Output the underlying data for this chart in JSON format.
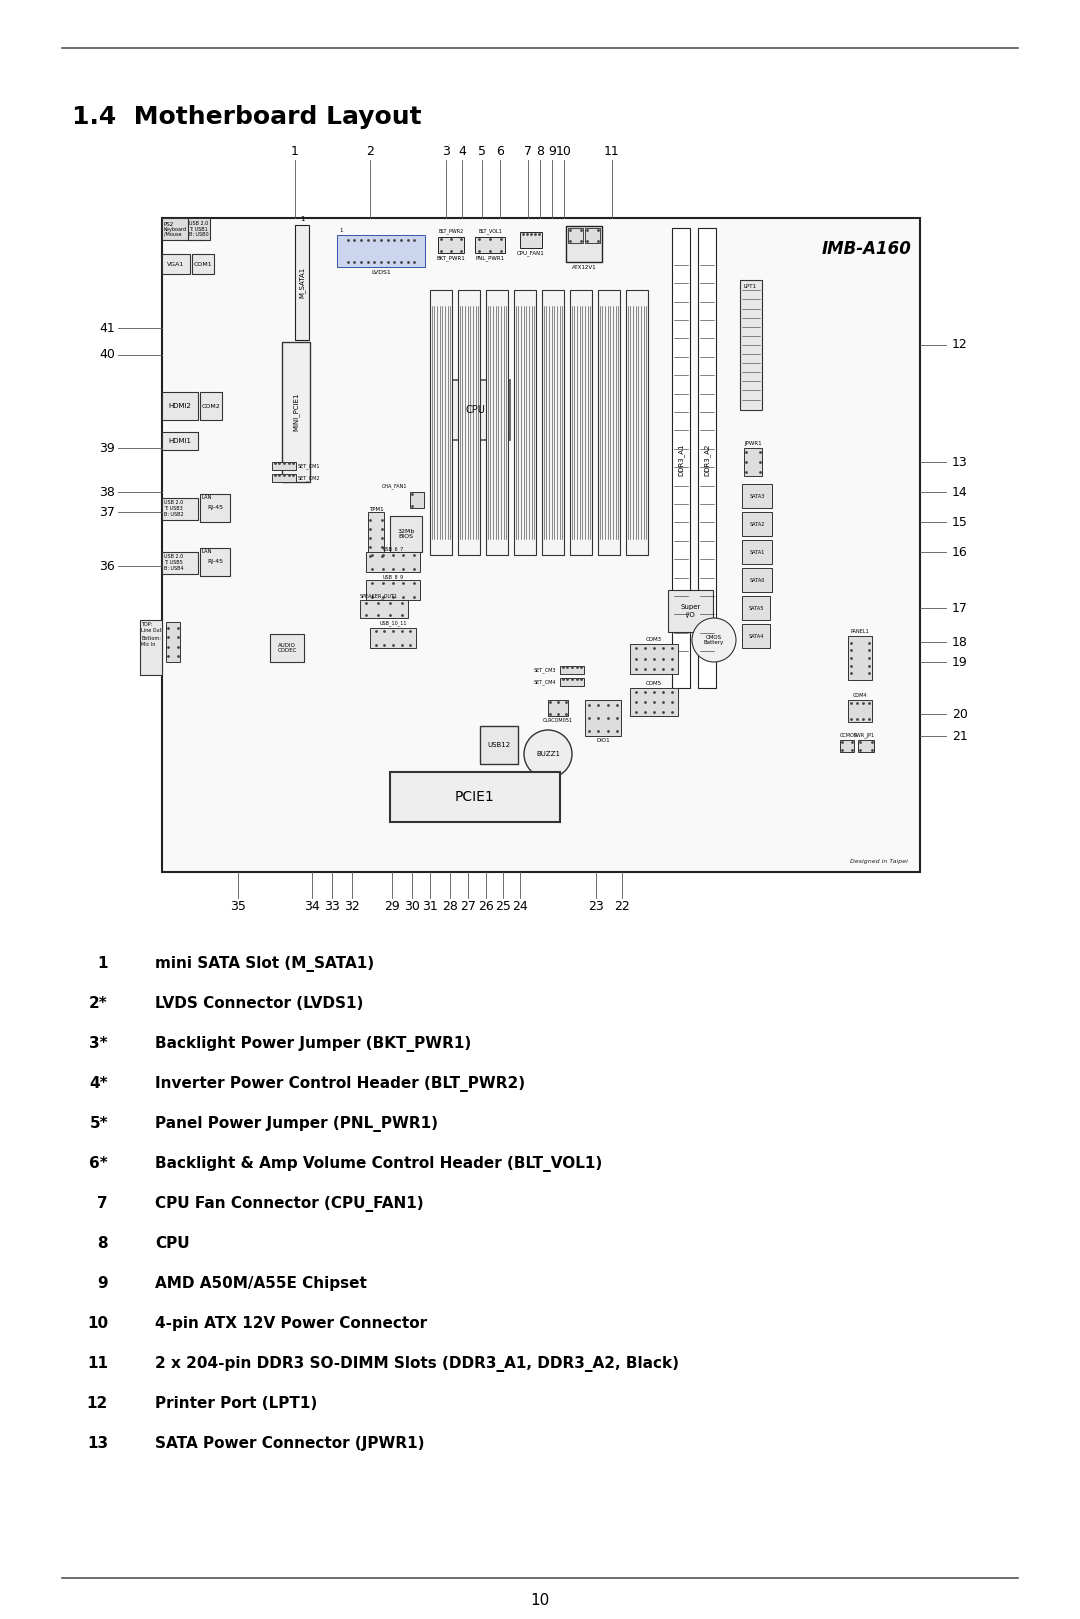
{
  "section_title": "1.4  Motherboard Layout",
  "board_label": "IMB-A160",
  "bg_color": "#ffffff",
  "legend": [
    [
      "1",
      "mini SATA Slot (M_SATA1)"
    ],
    [
      "2*",
      "LVDS Connector (LVDS1)"
    ],
    [
      "3*",
      "Backlight Power Jumper (BKT_PWR1)"
    ],
    [
      "4*",
      "Inverter Power Control Header (BLT_PWR2)"
    ],
    [
      "5*",
      "Panel Power Jumper (PNL_PWR1)"
    ],
    [
      "6*",
      "Backlight & Amp Volume Control Header (BLT_VOL1)"
    ],
    [
      "7",
      "CPU Fan Connector (CPU_FAN1)"
    ],
    [
      "8",
      "CPU"
    ],
    [
      "9",
      "AMD A50M/A55E Chipset"
    ],
    [
      "10",
      "4-pin ATX 12V Power Connector"
    ],
    [
      "11",
      "2 x 204-pin DDR3 SO-DIMM Slots (DDR3_A1, DDR3_A2, Black)"
    ],
    [
      "12",
      "Printer Port (LPT1)"
    ],
    [
      "13",
      "SATA Power Connector (JPWR1)"
    ]
  ]
}
